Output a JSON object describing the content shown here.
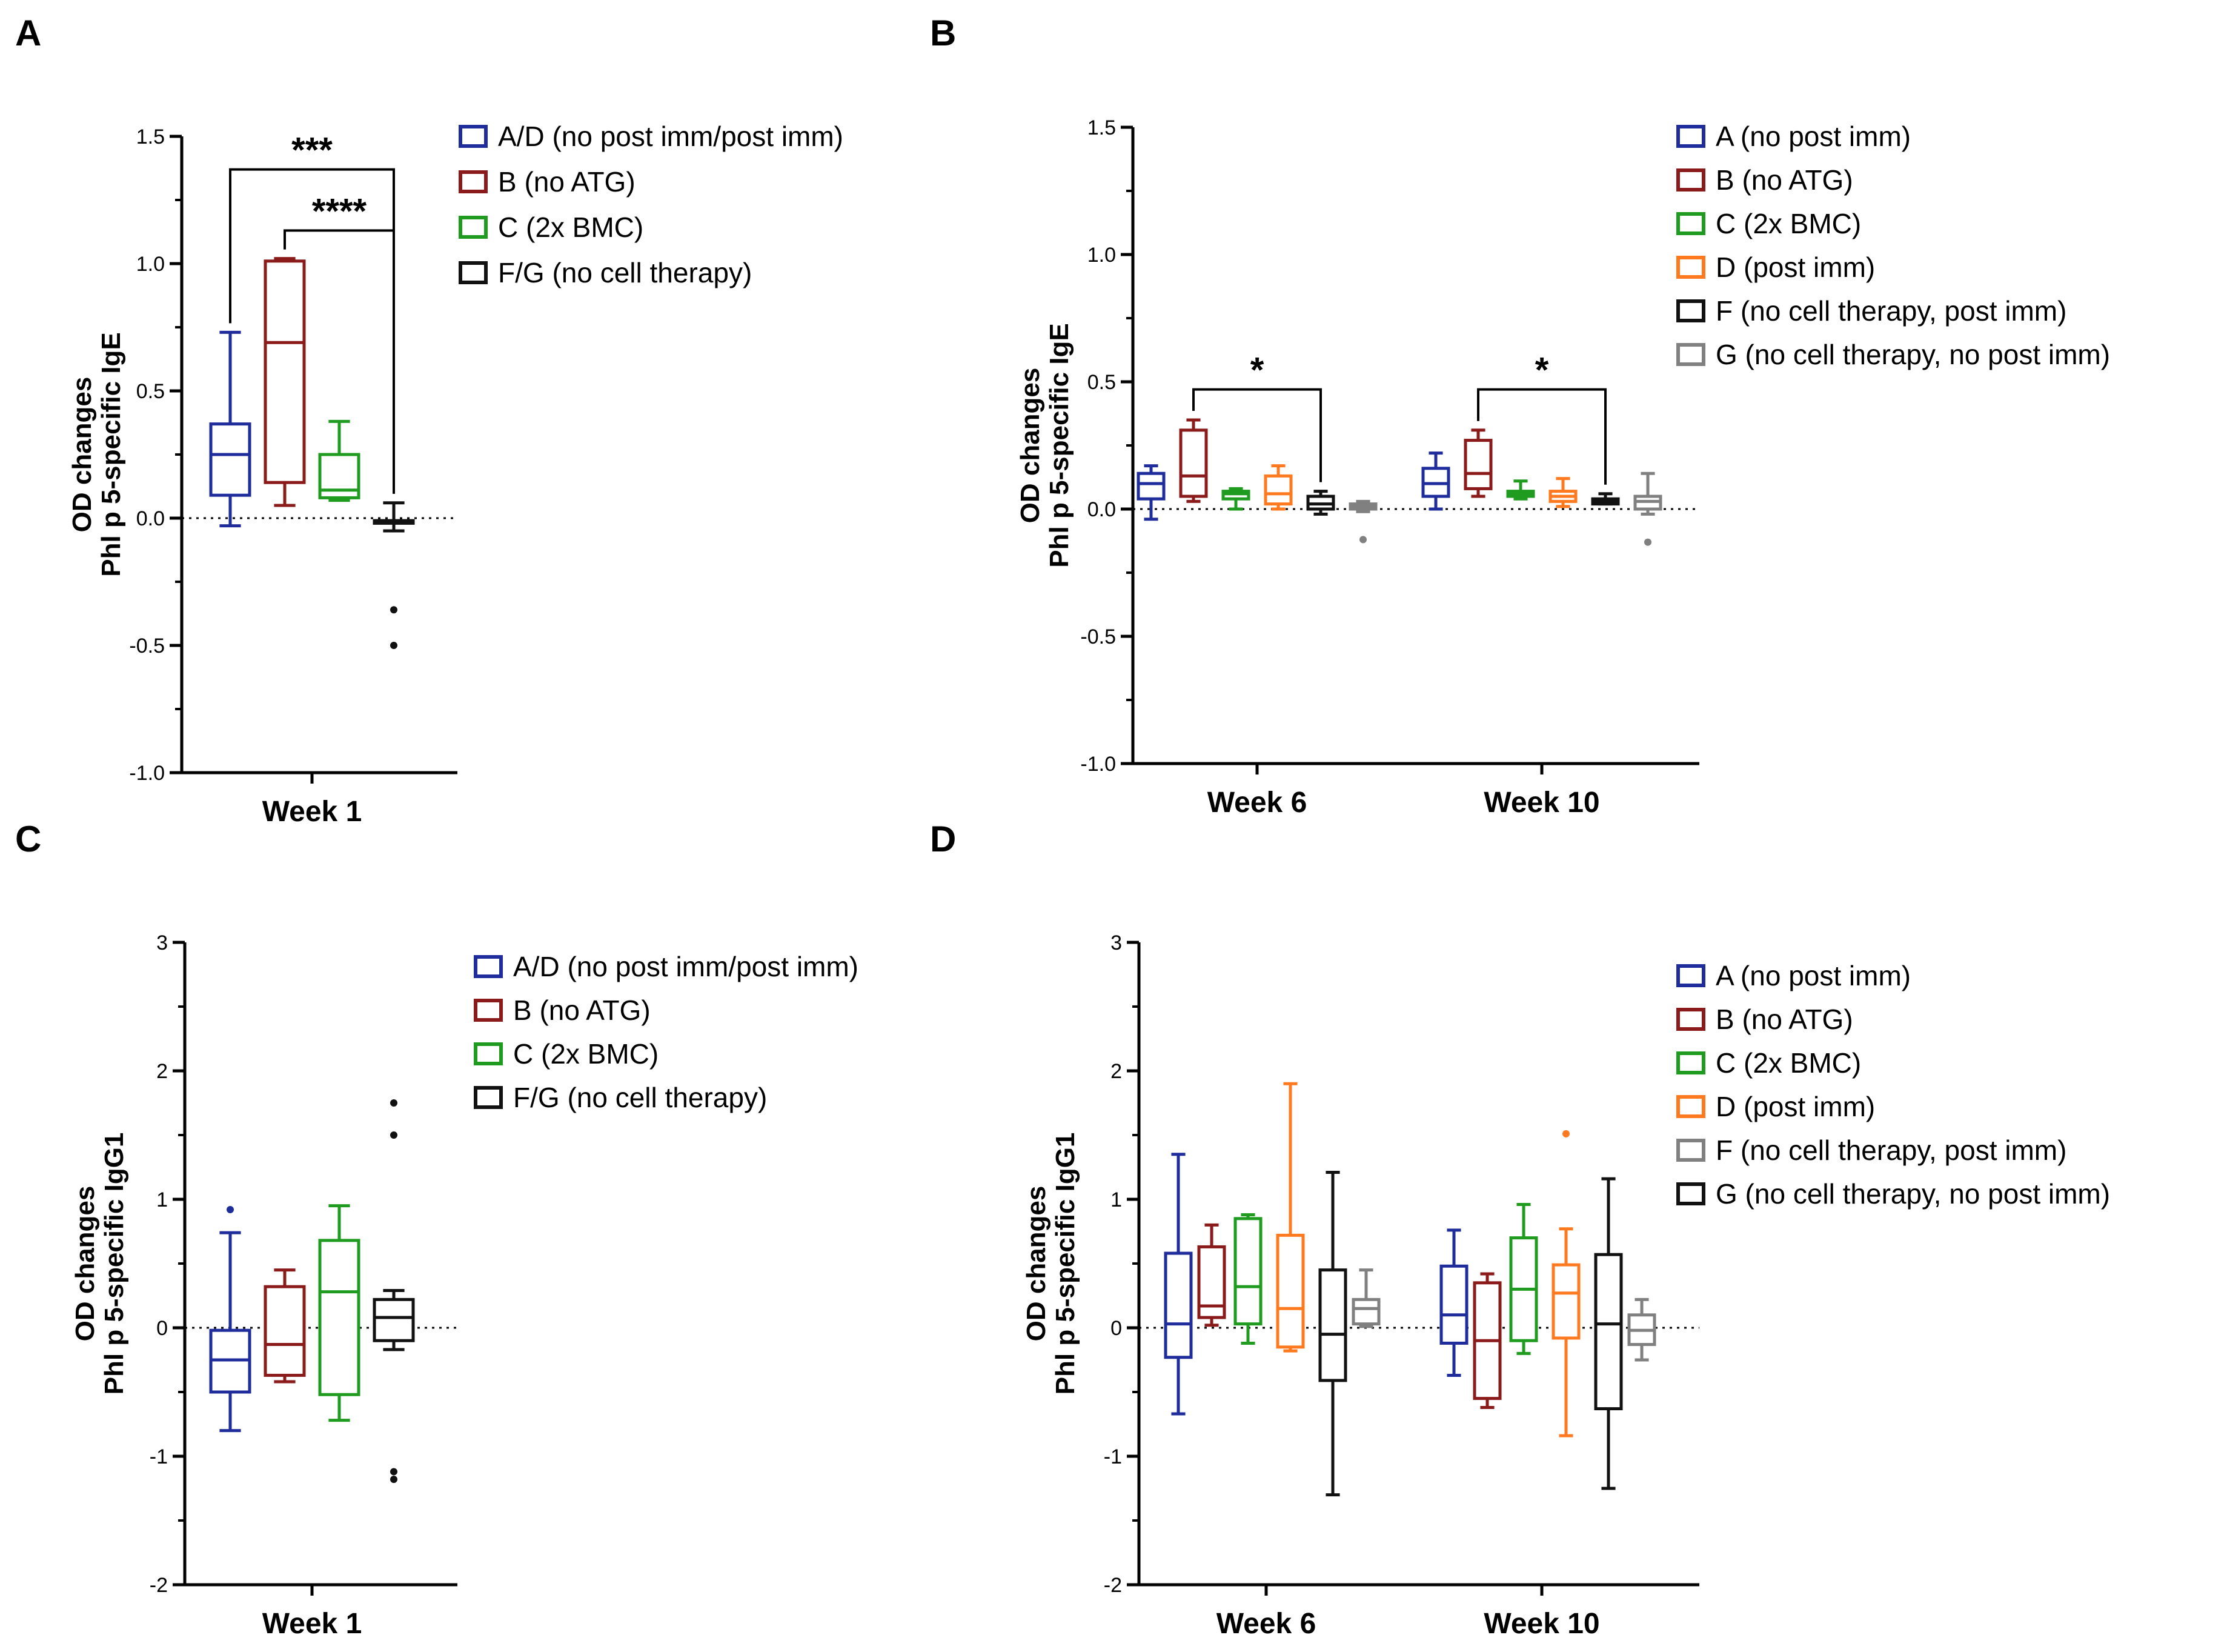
{
  "colors": {
    "A": "#1f2d9c",
    "AD": "#1f2d9c",
    "B": "#8b1a1a",
    "C": "#1f9c1f",
    "D": "#ff7a1f",
    "F": "#111111",
    "FG": "#111111",
    "G": "#808080"
  },
  "panels": [
    {
      "letter": "A",
      "ylabel_line1": "OD changes",
      "ylabel_line2": "Phl p 5-specific IgE",
      "legend": [
        {
          "key": "AD",
          "label": "A/D (no post imm/post imm)"
        },
        {
          "key": "B",
          "label": "B (no ATG)"
        },
        {
          "key": "C",
          "label": "C (2x BMC)"
        },
        {
          "key": "FG",
          "label": "F/G (no cell therapy)"
        }
      ]
    },
    {
      "letter": "B",
      "ylabel_line1": "OD changes",
      "ylabel_line2": "Phl p 5-specific IgE",
      "legend": [
        {
          "key": "A",
          "label": "A (no post imm)"
        },
        {
          "key": "B",
          "label": "B (no ATG)"
        },
        {
          "key": "C",
          "label": "C (2x BMC)"
        },
        {
          "key": "D",
          "label": "D (post imm)"
        },
        {
          "key": "F",
          "label": "F (no cell therapy,  post imm)"
        },
        {
          "key": "G",
          "label": "G (no cell therapy,  no post imm)"
        }
      ]
    },
    {
      "letter": "C",
      "ylabel_line1": "OD changes",
      "ylabel_line2": "Phl p 5-specific IgG1",
      "legend": [
        {
          "key": "AD",
          "label": "A/D (no post imm/post imm)"
        },
        {
          "key": "B",
          "label": "B (no ATG)"
        },
        {
          "key": "C",
          "label": "C (2x BMC)"
        },
        {
          "key": "FG",
          "label": "F/G (no cell therapy)"
        }
      ]
    },
    {
      "letter": "D",
      "ylabel_line1": "OD changes",
      "ylabel_line2": "Phl p 5-specific IgG1",
      "legend": [
        {
          "key": "A",
          "label": "A (no post imm)"
        },
        {
          "key": "B",
          "label": "B (no ATG)"
        },
        {
          "key": "C",
          "label": "C (2x BMC)"
        },
        {
          "key": "D",
          "label": "D (post imm)"
        },
        {
          "key": "G",
          "label": "F (no cell therapy, post imm)"
        },
        {
          "key": "F",
          "label": "G (no cell therapy, no post imm)"
        }
      ]
    }
  ],
  "chart_data": [
    {
      "type": "box",
      "panel": "A",
      "ylabel": "OD changes Phl p 5-specific IgE",
      "ylim": [
        -1.0,
        1.5
      ],
      "yticks": [
        1.5,
        1.0,
        0.5,
        0.0,
        -0.5,
        -1.0
      ],
      "ytick_labels": [
        "1.5",
        "1.0",
        "0.5",
        "0.0",
        "-0.5",
        "-1.0"
      ],
      "reference_line": 0,
      "categories": [
        "Week 1"
      ],
      "series": [
        {
          "name": "A/D (no post imm/post imm)",
          "key": "AD",
          "boxes": [
            {
              "min": -0.03,
              "q1": 0.09,
              "median": 0.25,
              "q3": 0.37,
              "max": 0.73,
              "outliers": []
            }
          ]
        },
        {
          "name": "B (no ATG)",
          "key": "B",
          "boxes": [
            {
              "min": 0.05,
              "q1": 0.14,
              "median": 0.69,
              "q3": 1.01,
              "max": 1.02,
              "outliers": []
            }
          ]
        },
        {
          "name": "C (2x BMC)",
          "key": "C",
          "boxes": [
            {
              "min": 0.07,
              "q1": 0.08,
              "median": 0.11,
              "q3": 0.25,
              "max": 0.38,
              "outliers": []
            }
          ]
        },
        {
          "name": "F/G (no cell therapy)",
          "key": "FG",
          "boxes": [
            {
              "min": -0.05,
              "q1": -0.02,
              "median": -0.01,
              "q3": -0.01,
              "max": 0.06,
              "outliers": [
                -0.36,
                -0.5
              ]
            }
          ]
        }
      ],
      "significance": [
        {
          "label": "***",
          "from_series": 0,
          "to_series": 3,
          "category": 0,
          "y": 1.37
        },
        {
          "label": "****",
          "from_series": 1,
          "to_series": 3,
          "category": 0,
          "y": 1.13
        }
      ]
    },
    {
      "type": "box",
      "panel": "B",
      "ylabel": "OD changes Phl p 5-specific IgE",
      "ylim": [
        -1.0,
        1.5
      ],
      "yticks": [
        1.5,
        1.0,
        0.5,
        0.0,
        -0.5,
        -1.0
      ],
      "ytick_labels": [
        "1.5",
        "1.0",
        "0.5",
        "0.0",
        "-0.5",
        "-1.0"
      ],
      "reference_line": 0,
      "categories": [
        "Week 6",
        "Week 10"
      ],
      "series": [
        {
          "name": "A (no post imm)",
          "key": "A",
          "boxes": [
            {
              "min": -0.04,
              "q1": 0.04,
              "median": 0.1,
              "q3": 0.14,
              "max": 0.17,
              "outliers": []
            },
            {
              "min": 0.0,
              "q1": 0.05,
              "median": 0.1,
              "q3": 0.16,
              "max": 0.22,
              "outliers": []
            }
          ]
        },
        {
          "name": "B (no ATG)",
          "key": "B",
          "boxes": [
            {
              "min": 0.03,
              "q1": 0.05,
              "median": 0.13,
              "q3": 0.31,
              "max": 0.35,
              "outliers": []
            },
            {
              "min": 0.05,
              "q1": 0.08,
              "median": 0.14,
              "q3": 0.27,
              "max": 0.31,
              "outliers": []
            }
          ]
        },
        {
          "name": "C (2x BMC)",
          "key": "C",
          "boxes": [
            {
              "min": 0.0,
              "q1": 0.04,
              "median": 0.06,
              "q3": 0.07,
              "max": 0.08,
              "outliers": []
            },
            {
              "min": 0.04,
              "q1": 0.05,
              "median": 0.06,
              "q3": 0.07,
              "max": 0.11,
              "outliers": []
            }
          ]
        },
        {
          "name": "D (post imm)",
          "key": "D",
          "boxes": [
            {
              "min": 0.0,
              "q1": 0.02,
              "median": 0.06,
              "q3": 0.13,
              "max": 0.17,
              "outliers": []
            },
            {
              "min": 0.01,
              "q1": 0.03,
              "median": 0.05,
              "q3": 0.07,
              "max": 0.12,
              "outliers": []
            }
          ]
        },
        {
          "name": "F (no cell therapy,  post imm)",
          "key": "F",
          "boxes": [
            {
              "min": -0.02,
              "q1": 0.0,
              "median": 0.02,
              "q3": 0.05,
              "max": 0.07,
              "outliers": []
            },
            {
              "min": 0.02,
              "q1": 0.02,
              "median": 0.03,
              "q3": 0.04,
              "max": 0.06,
              "outliers": []
            }
          ]
        },
        {
          "name": "G (no cell therapy,  no post imm)",
          "key": "G",
          "boxes": [
            {
              "min": -0.01,
              "q1": 0.0,
              "median": 0.01,
              "q3": 0.02,
              "max": 0.03,
              "outliers": [
                -0.12
              ]
            },
            {
              "min": -0.02,
              "q1": 0.0,
              "median": 0.03,
              "q3": 0.05,
              "max": 0.14,
              "outliers": [
                -0.13
              ]
            }
          ]
        }
      ],
      "significance": [
        {
          "label": "*",
          "from_series": 1,
          "to_series": 4,
          "category": 0,
          "y": 0.47
        },
        {
          "label": "*",
          "from_series": 1,
          "to_series": 4,
          "category": 1,
          "y": 0.47
        }
      ]
    },
    {
      "type": "box",
      "panel": "C",
      "ylabel": "OD changes Phl p 5-specific IgG1",
      "ylim": [
        -2,
        3
      ],
      "yticks": [
        3,
        2,
        1,
        0,
        -1,
        -2
      ],
      "ytick_labels": [
        "3",
        "2",
        "1",
        "0",
        "-1",
        "-2"
      ],
      "reference_line": 0,
      "categories": [
        "Week 1"
      ],
      "series": [
        {
          "name": "A/D (no post imm/post imm)",
          "key": "AD",
          "boxes": [
            {
              "min": -0.8,
              "q1": -0.5,
              "median": -0.25,
              "q3": -0.02,
              "max": 0.74,
              "outliers": [
                0.92
              ]
            }
          ]
        },
        {
          "name": "B (no ATG)",
          "key": "B",
          "boxes": [
            {
              "min": -0.42,
              "q1": -0.37,
              "median": -0.13,
              "q3": 0.32,
              "max": 0.45,
              "outliers": []
            }
          ]
        },
        {
          "name": "C (2x BMC)",
          "key": "C",
          "boxes": [
            {
              "min": -0.72,
              "q1": -0.52,
              "median": 0.28,
              "q3": 0.68,
              "max": 0.95,
              "outliers": []
            }
          ]
        },
        {
          "name": "F/G (no cell therapy)",
          "key": "FG",
          "boxes": [
            {
              "min": -0.17,
              "q1": -0.1,
              "median": 0.08,
              "q3": 0.22,
              "max": 0.29,
              "outliers": [
                1.75,
                1.5,
                -1.12,
                -1.18
              ]
            }
          ]
        }
      ],
      "significance": []
    },
    {
      "type": "box",
      "panel": "D",
      "ylabel": "OD changes Phl p 5-specific IgG1",
      "ylim": [
        -2,
        3
      ],
      "yticks": [
        3,
        2,
        1,
        0,
        -1,
        -2
      ],
      "ytick_labels": [
        "3",
        "2",
        "1",
        "0",
        "-1",
        "-2"
      ],
      "reference_line": 0,
      "categories": [
        "Week 6",
        "Week 10"
      ],
      "series": [
        {
          "name": "A (no post imm)",
          "key": "A",
          "boxes": [
            {
              "min": -0.67,
              "q1": -0.23,
              "median": 0.03,
              "q3": 0.58,
              "max": 1.35,
              "outliers": []
            },
            {
              "min": -0.37,
              "q1": -0.12,
              "median": 0.1,
              "q3": 0.48,
              "max": 0.76,
              "outliers": []
            }
          ]
        },
        {
          "name": "B (no ATG)",
          "key": "B",
          "boxes": [
            {
              "min": 0.02,
              "q1": 0.08,
              "median": 0.17,
              "q3": 0.63,
              "max": 0.8,
              "outliers": []
            },
            {
              "min": -0.62,
              "q1": -0.55,
              "median": -0.1,
              "q3": 0.35,
              "max": 0.42,
              "outliers": []
            }
          ]
        },
        {
          "name": "C (2x BMC)",
          "key": "C",
          "boxes": [
            {
              "min": -0.12,
              "q1": 0.03,
              "median": 0.32,
              "q3": 0.85,
              "max": 0.88,
              "outliers": []
            },
            {
              "min": -0.2,
              "q1": -0.1,
              "median": 0.3,
              "q3": 0.7,
              "max": 0.96,
              "outliers": []
            }
          ]
        },
        {
          "name": "D (post imm)",
          "key": "D",
          "boxes": [
            {
              "min": -0.18,
              "q1": -0.15,
              "median": 0.15,
              "q3": 0.72,
              "max": 1.9,
              "outliers": []
            },
            {
              "min": -0.84,
              "q1": -0.08,
              "median": 0.27,
              "q3": 0.49,
              "max": 0.77,
              "outliers": [
                1.51
              ]
            }
          ]
        },
        {
          "name": "G (no cell therapy, no post imm)",
          "key": "F",
          "boxes": [
            {
              "min": -1.3,
              "q1": -0.41,
              "median": -0.05,
              "q3": 0.45,
              "max": 1.21,
              "outliers": []
            },
            {
              "min": -1.25,
              "q1": -0.63,
              "median": 0.03,
              "q3": 0.57,
              "max": 1.16,
              "outliers": []
            }
          ]
        },
        {
          "name": "F (no cell therapy, post imm)",
          "key": "G",
          "boxes": [
            {
              "min": 0.01,
              "q1": 0.03,
              "median": 0.15,
              "q3": 0.22,
              "max": 0.45,
              "outliers": []
            },
            {
              "min": -0.25,
              "q1": -0.13,
              "median": -0.02,
              "q3": 0.1,
              "max": 0.22,
              "outliers": []
            }
          ]
        }
      ],
      "significance": []
    }
  ]
}
